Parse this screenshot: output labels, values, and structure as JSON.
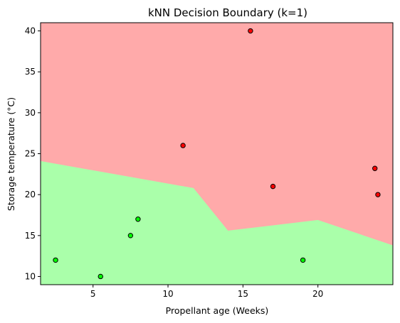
{
  "chart_data": {
    "type": "scatter",
    "title": "kNN Decision Boundary (k=1)",
    "xlabel": "Propellant age (Weeks)",
    "ylabel": "Storage temperature (°C)",
    "xlim": [
      1.5,
      25.0
    ],
    "ylim": [
      9.0,
      41.0
    ],
    "xticks": [
      5,
      10,
      15,
      20
    ],
    "yticks": [
      10,
      15,
      20,
      25,
      30,
      35,
      40
    ],
    "grid": false,
    "legend": "none",
    "region_colors": {
      "red": "#ffaaaa",
      "green": "#aaffaa"
    },
    "point_colors": {
      "red": "#ff0000",
      "green": "#00ff00"
    },
    "series": [
      {
        "class": "red",
        "points": [
          [
            15.5,
            40.0
          ],
          [
            11.0,
            26.0
          ],
          [
            17.0,
            21.0
          ],
          [
            23.8,
            23.2
          ],
          [
            24.0,
            20.0
          ]
        ]
      },
      {
        "class": "green",
        "points": [
          [
            2.5,
            12.0
          ],
          [
            5.5,
            10.0
          ],
          [
            7.5,
            15.0
          ],
          [
            8.0,
            17.0
          ],
          [
            19.0,
            12.0
          ]
        ]
      }
    ],
    "decision_boundary": [
      [
        1.5,
        24.1
      ],
      [
        11.7,
        20.8
      ],
      [
        14.0,
        15.6
      ],
      [
        20.0,
        16.9
      ],
      [
        25.0,
        13.8
      ]
    ]
  }
}
